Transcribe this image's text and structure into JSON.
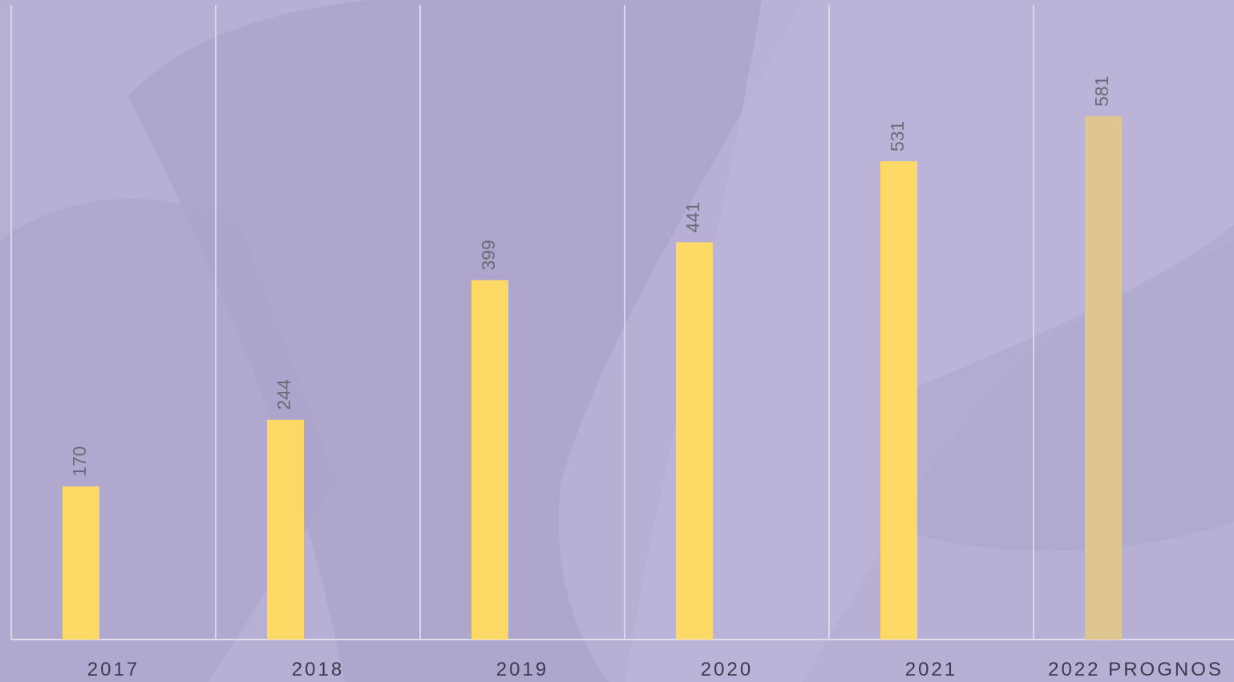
{
  "chart_data": {
    "type": "bar",
    "categories": [
      "2017",
      "2018",
      "2019",
      "2020",
      "2021",
      "2022 PROGNOS"
    ],
    "values": [
      170,
      244,
      399,
      441,
      531,
      581
    ],
    "colors": [
      "#ffd966",
      "#ffd966",
      "#ffd966",
      "#ffd966",
      "#ffd966",
      "#dfc58f"
    ],
    "ylim": [
      0,
      710
    ]
  }
}
